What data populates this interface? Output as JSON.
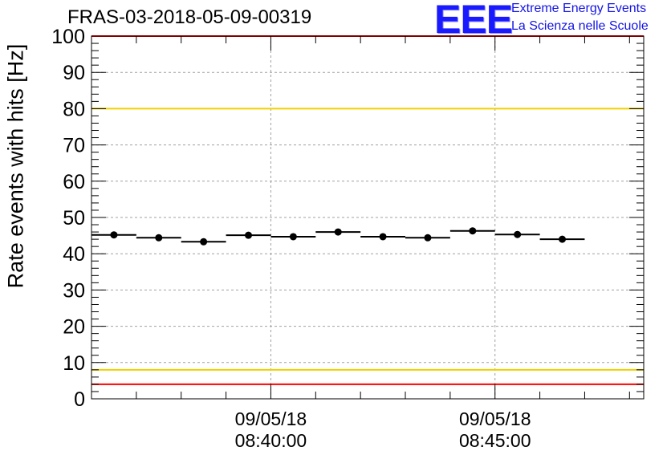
{
  "header": {
    "title": "FRAS-03-2018-05-09-00319",
    "logo_mark": "EEE",
    "logo_line1": "Extreme Energy Events",
    "logo_line2": "La Scienza nelle Scuole"
  },
  "colors": {
    "points": "#000000",
    "grid": "#a0a0a0",
    "limit_red": "#ff0000",
    "limit_yellow": "#f0d000",
    "logo": "#1414e6"
  },
  "chart_data": {
    "type": "scatter",
    "title": "FRAS-03-2018-05-09-00319",
    "ylabel": "Rate events with hits [Hz]",
    "xlabel": "",
    "ylim": [
      0,
      100
    ],
    "yticks": [
      0,
      10,
      20,
      30,
      40,
      50,
      60,
      70,
      80,
      90,
      100
    ],
    "xlim": [
      "2018-05-09 08:36:00",
      "2018-05-09 08:48:19"
    ],
    "xticks": [
      {
        "time": "2018-05-09 08:40:00",
        "date_label": "09/05/18",
        "time_label": "08:40:00"
      },
      {
        "time": "2018-05-09 08:45:00",
        "date_label": "09/05/18",
        "time_label": "08:45:00"
      }
    ],
    "grid": true,
    "series": [
      {
        "x": [
          "2018-05-09 08:36:30",
          "2018-05-09 08:37:30",
          "2018-05-09 08:38:30",
          "2018-05-09 08:39:30",
          "2018-05-09 08:40:30",
          "2018-05-09 08:41:30",
          "2018-05-09 08:42:30",
          "2018-05-09 08:43:30",
          "2018-05-09 08:44:30",
          "2018-05-09 08:45:30",
          "2018-05-09 08:46:30"
        ],
        "values": [
          45.2,
          44.4,
          43.3,
          45.1,
          44.7,
          46.0,
          44.7,
          44.4,
          46.3,
          45.3,
          44.0
        ],
        "bin_width_minutes": 1
      }
    ],
    "reference_lines": [
      {
        "y": 100,
        "color": "red"
      },
      {
        "y": 80,
        "color": "yellow"
      },
      {
        "y": 8,
        "color": "yellow"
      },
      {
        "y": 4,
        "color": "red"
      }
    ]
  }
}
